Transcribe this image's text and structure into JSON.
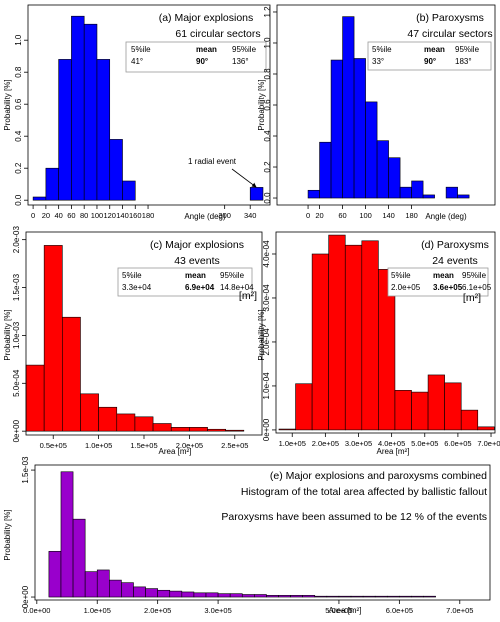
{
  "chart_data": [
    {
      "type": "histogram",
      "title": "(a)  Major explosions",
      "subtitle": "61 circular sectors",
      "x_label": "Angle (deg)",
      "y_label": "Probability [%]",
      "color": "#0000ff",
      "bins": [
        0,
        20,
        40,
        60,
        80,
        100,
        120,
        140,
        160,
        180,
        200,
        220,
        240,
        260,
        280,
        300,
        320,
        340,
        360
      ],
      "values": [
        0.02,
        0.2,
        0.88,
        1.15,
        1.1,
        0.88,
        0.38,
        0.12,
        0,
        0,
        0,
        0,
        0,
        0,
        0,
        0,
        0,
        0.08
      ],
      "xlim": [
        -8,
        371
      ],
      "ylim": [
        -0.03,
        1.22
      ],
      "xticks": [
        0,
        20,
        40,
        60,
        80,
        100,
        120,
        140,
        160,
        180,
        300,
        340
      ],
      "yticks": [
        {
          "value": 0,
          "label": "0.0"
        },
        0.2,
        0.4,
        0.6,
        0.8,
        {
          "value": 1,
          "label": "1.0"
        }
      ],
      "stats": {
        "header": [
          "5%ile",
          "mean",
          "95%ile"
        ],
        "values": [
          "41°",
          "90°",
          "136°"
        ]
      },
      "annotation": "1 radial event"
    },
    {
      "type": "histogram",
      "title": "(b)  Paroxysms",
      "subtitle": "47 circular sectors",
      "x_label": "Angle (deg)",
      "y_label": "Probability [%]",
      "color": "#0000ff",
      "bins": [
        0,
        20,
        40,
        60,
        80,
        100,
        120,
        140,
        160,
        180,
        200,
        220,
        240,
        260,
        280
      ],
      "values": [
        0.05,
        0.36,
        0.89,
        1.17,
        0.9,
        0.62,
        0.37,
        0.26,
        0.07,
        0.11,
        0.02,
        0,
        0.07,
        0.02
      ],
      "xlim": [
        -54,
        325
      ],
      "ylim": [
        -0.045,
        1.245
      ],
      "xticks": [
        0,
        20,
        60,
        100,
        140,
        180
      ],
      "yticks": [
        {
          "value": 0,
          "label": "0.0"
        },
        0.2,
        0.4,
        0.6,
        0.8,
        {
          "value": 1,
          "label": "1.0"
        },
        1.2
      ],
      "stats": {
        "header": [
          "5%ile",
          "mean",
          "95%ile"
        ],
        "values": [
          "33°",
          "90°",
          "183°"
        ]
      }
    },
    {
      "type": "histogram",
      "title": "(c)  Major explosions",
      "subtitle": "43 events",
      "x_label": "Area [m²]",
      "y_label": "Probability [%]",
      "color": "#ff0000",
      "unit": "[m²]",
      "bins": [
        20000,
        40000,
        60000,
        80000,
        100000,
        120000,
        140000,
        160000,
        180000,
        200000,
        220000,
        240000,
        260000
      ],
      "values": [
        0.00069,
        0.00194,
        0.00119,
        0.00039,
        0.00025,
        0.00018,
        0.00015,
        8e-05,
        4e-05,
        4e-05,
        2e-05,
        1e-05
      ],
      "xlim": [
        20000,
        280000
      ],
      "ylim": [
        -4e-05,
        0.00208
      ],
      "xticks": [
        {
          "value": 50000,
          "label": "0.5e+05"
        },
        {
          "value": 100000,
          "label": "1.0e+05"
        },
        {
          "value": 150000,
          "label": "1.5e+05"
        },
        {
          "value": 200000,
          "label": "2.0e+05"
        },
        {
          "value": 250000,
          "label": "2.5e+05"
        }
      ],
      "yticks": [
        {
          "value": 0,
          "label": "0e+00"
        },
        {
          "value": 0.0005,
          "label": "5.0e-04"
        },
        {
          "value": 0.001,
          "label": "1.0e-03"
        },
        {
          "value": 0.0015,
          "label": "1.5e-03"
        },
        {
          "value": 0.002,
          "label": "2.0e-03"
        }
      ],
      "stats": {
        "header": [
          "5%ile",
          "mean",
          "95%ile"
        ],
        "values": [
          "3.3e+04",
          "6.9e+04",
          "14.8e+04"
        ]
      }
    },
    {
      "type": "histogram",
      "title": "(d)  Paroxysms",
      "subtitle": "24 events",
      "x_label": "Area [m²]",
      "y_label": "Probability [%]",
      "color": "#ff0000",
      "unit": "[m²]",
      "bins": [
        60000,
        110000,
        160000,
        210000,
        260000,
        310000,
        360000,
        410000,
        460000,
        510000,
        560000,
        610000,
        660000,
        710000
      ],
      "values": [
        2e-06,
        0.000105,
        0.0004,
        0.000443,
        0.00042,
        0.00043,
        0.000365,
        9e-05,
        8.6e-05,
        0.000125,
        0.000107,
        4.5e-05,
        7e-06
      ],
      "xlim": [
        51000,
        712000
      ],
      "ylim": [
        -7e-06,
        0.00045
      ],
      "xticks": [
        {
          "value": 100000,
          "label": "1.0e+05"
        },
        {
          "value": 200000,
          "label": "2.0e+05"
        },
        {
          "value": 300000,
          "label": "3.0e+05"
        },
        {
          "value": 400000,
          "label": "4.0e+05"
        },
        {
          "value": 500000,
          "label": "5.0e+05"
        },
        {
          "value": 600000,
          "label": "6.0e+05"
        },
        {
          "value": 700000,
          "label": "7.0e+05"
        }
      ],
      "yticks": [
        {
          "value": 0,
          "label": "0e+00"
        },
        {
          "value": 0.0001,
          "label": "1.0e-04"
        },
        {
          "value": 0.0002,
          "label": "2.0e-04"
        },
        {
          "value": 0.0003,
          "label": "3.0e-04"
        },
        {
          "value": 0.0004,
          "label": "4.0e-04"
        }
      ],
      "stats": {
        "header": [
          "5%ile",
          "mean",
          "95%ile"
        ],
        "values": [
          "2.0e+05",
          "3.6e+05",
          "6.1e+05"
        ]
      }
    },
    {
      "type": "histogram",
      "title": "(e) Major explosions and paroxysms combined",
      "subtitle": "Histogram of the total area affected by ballistic fallout",
      "annotation": "Paroxysms have been assumed to be 12 % of the events",
      "x_label": "Area [m²]",
      "y_label": "Probability [%]",
      "color": "#9900cc",
      "bins": [
        20000,
        40000,
        60000,
        80000,
        100000,
        120000,
        140000,
        160000,
        180000,
        200000,
        220000,
        240000,
        260000,
        280000,
        300000,
        320000,
        340000,
        360000,
        380000,
        400000,
        420000,
        440000,
        460000,
        480000,
        500000,
        520000,
        540000,
        560000,
        580000,
        600000,
        620000,
        640000,
        660000,
        680000,
        700000
      ],
      "values": [
        0.00054,
        0.00148,
        0.00092,
        0.0003,
        0.00032,
        0.0002,
        0.00017,
        0.00012,
        0.0001,
        8e-05,
        7e-05,
        6e-05,
        5e-05,
        5e-05,
        4e-05,
        4e-05,
        3e-05,
        3e-05,
        2e-05,
        2e-05,
        2e-05,
        2e-05,
        1e-05,
        1e-05,
        1e-05,
        1e-05,
        1e-05,
        1e-05,
        1e-05,
        1e-05,
        1e-05,
        1e-05,
        0,
        0
      ],
      "xlim": [
        -3000,
        750000
      ],
      "ylim": [
        -3.5e-05,
        0.00156
      ],
      "xticks": [
        {
          "value": 0,
          "label": "0.0e+00"
        },
        {
          "value": 100000,
          "label": "1.0e+05"
        },
        {
          "value": 200000,
          "label": "2.0e+05"
        },
        {
          "value": 300000,
          "label": "3.0e+05"
        },
        {
          "value": 500000,
          "label": "5.0e+05"
        },
        {
          "value": 600000,
          "label": "6.0e+05"
        },
        {
          "value": 700000,
          "label": "7.0e+05"
        }
      ],
      "yticks": [
        {
          "value": 0,
          "label": "0e+00"
        },
        {
          "value": 0.0015,
          "label": "1.5e-03"
        }
      ]
    }
  ]
}
